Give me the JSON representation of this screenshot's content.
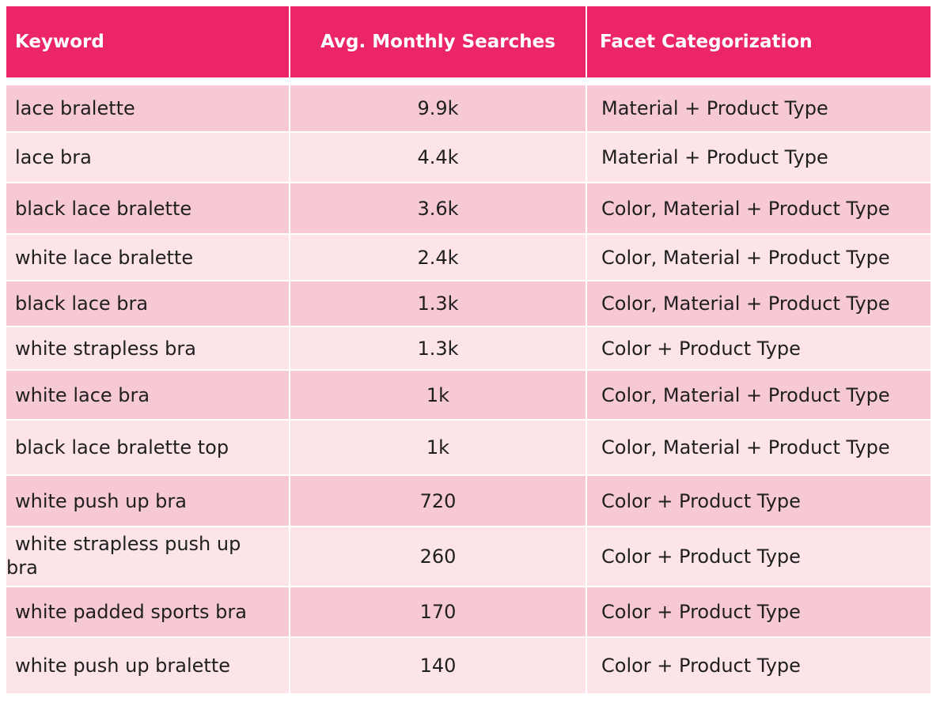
{
  "table": {
    "headers": [
      "Keyword",
      "Avg. Monthly Searches",
      "Facet Categorization"
    ],
    "colors": {
      "header_bg": "#ec2469",
      "header_text": "#ffffff",
      "row_dark": "#f7c9d4",
      "row_light": "#fce4e8"
    },
    "rows": [
      {
        "keyword": "lace bralette",
        "searches": "9.9k",
        "facet": "Material + Product Type"
      },
      {
        "keyword": "lace bra",
        "searches": "4.4k",
        "facet": "Material + Product Type"
      },
      {
        "keyword": "black lace bralette",
        "searches": "3.6k",
        "facet": "Color, Material + Product Type"
      },
      {
        "keyword": "white lace bralette",
        "searches": "2.4k",
        "facet": "Color, Material + Product Type"
      },
      {
        "keyword": "black lace bra",
        "searches": "1.3k",
        "facet": "Color, Material + Product Type"
      },
      {
        "keyword": "white strapless bra",
        "searches": "1.3k",
        "facet": "Color + Product Type"
      },
      {
        "keyword": "white lace bra",
        "searches": "1k",
        "facet": "Color, Material + Product Type"
      },
      {
        "keyword": "black lace bralette top",
        "searches": "1k",
        "facet": "Color, Material + Product Type"
      },
      {
        "keyword": "white push up bra",
        "searches": "720",
        "facet": "Color + Product Type"
      },
      {
        "keyword": "white strapless push up bra",
        "searches": "260",
        "facet": "Color + Product Type"
      },
      {
        "keyword": "white padded sports bra",
        "searches": "170",
        "facet": "Color + Product Type"
      },
      {
        "keyword": "white push up bralette",
        "searches": "140",
        "facet": "Color + Product Type"
      }
    ]
  }
}
